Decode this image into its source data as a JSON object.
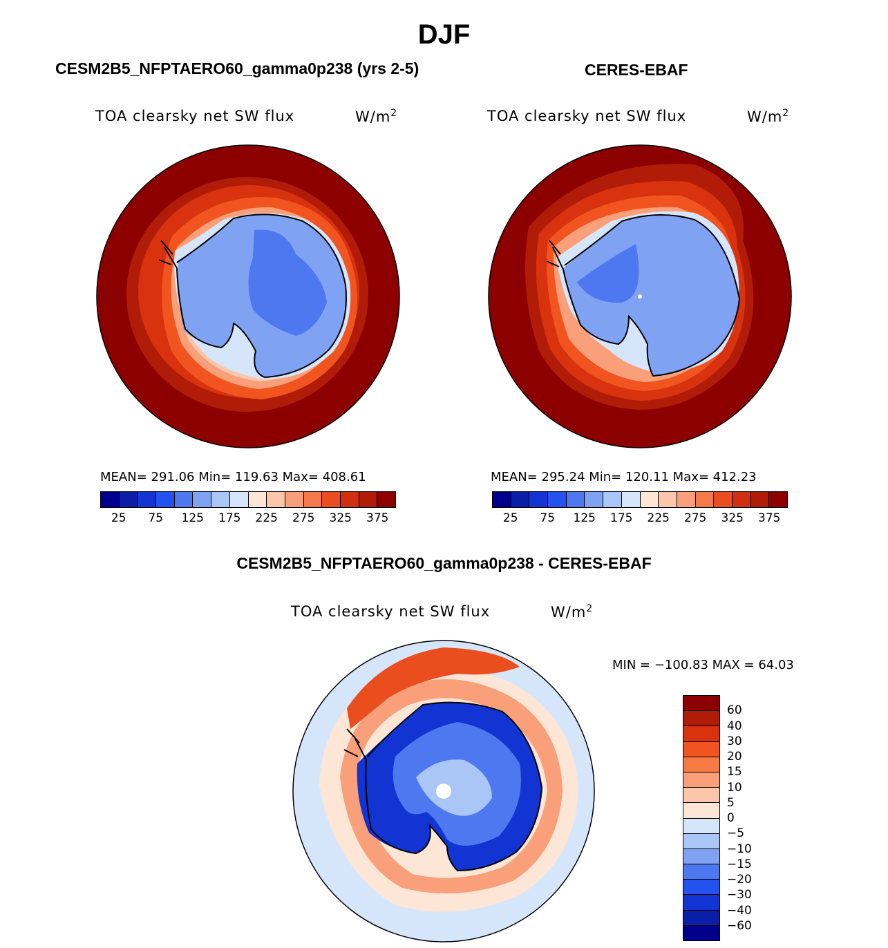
{
  "title": "DJF",
  "season": "DJF",
  "panels": {
    "model": {
      "case": "CESM2B5_NFPTAERO60_gamma0p238 (yrs 2-5)",
      "variable": "TOA clearsky net SW flux",
      "units_base": "W/m",
      "units_exp": "2",
      "stats": "MEAN= 291.06   Min= 119.63   Max= 408.61"
    },
    "obs": {
      "case": "CERES-EBAF",
      "variable": "TOA clearsky net SW flux",
      "units_base": "W/m",
      "units_exp": "2",
      "stats": "MEAN= 295.24   Min= 120.11   Max= 412.23"
    },
    "diff": {
      "case": "CESM2B5_NFPTAERO60_gamma0p238 - CERES-EBAF",
      "variable": "TOA clearsky net SW flux",
      "units_base": "W/m",
      "units_exp": "2",
      "stats": "MIN = −100.83 MAX =   64.03"
    }
  },
  "abs_colorbar": {
    "colors": [
      "#00008c",
      "#0a1ea8",
      "#1234d2",
      "#2452ee",
      "#4e78f0",
      "#80a2f2",
      "#aac6f6",
      "#d6e6fa",
      "#fde6d6",
      "#fcc6aa",
      "#f9a07a",
      "#f47a4c",
      "#ea4e1e",
      "#d03010",
      "#b01c08",
      "#8c0000"
    ],
    "ticks": [
      "25",
      "75",
      "125",
      "175",
      "225",
      "275",
      "325",
      "375"
    ]
  },
  "diff_colorbar": {
    "colors": [
      "#8c0000",
      "#b01c08",
      "#d8320e",
      "#f25420",
      "#f77a44",
      "#f9a07a",
      "#fcc6aa",
      "#fde6d6",
      "#d6e6fa",
      "#aac6f6",
      "#80a2f2",
      "#4e78f0",
      "#2452ee",
      "#1234d2",
      "#0a1ea8",
      "#00008c"
    ],
    "ticks": [
      "60",
      "40",
      "30",
      "20",
      "15",
      "10",
      "5",
      "0",
      "−5",
      "−10",
      "−15",
      "−20",
      "−30",
      "−40",
      "−60"
    ]
  },
  "map_colors": {
    "ocean_far": "#8c0000",
    "ring1": "#b01c08",
    "ring2": "#d8320e",
    "ring3": "#f25420",
    "ring4": "#f9a07a",
    "ring5": "#fcc6aa",
    "ice_edge": "#d6e6fa",
    "land": "#80a2f2",
    "land_inner": "#4e78f0",
    "diff_ocean": "#d6e6fa",
    "diff_pos_light": "#fde6d6",
    "diff_pos_mid": "#f9a07a",
    "diff_pos_strong": "#ea4e1e",
    "diff_neg_light": "#aac6f6",
    "diff_neg_mid": "#4e78f0",
    "diff_neg_strong": "#1234d2",
    "coast": "#000000"
  }
}
